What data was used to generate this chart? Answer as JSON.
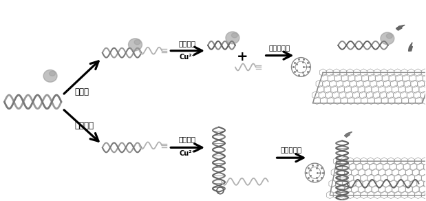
{
  "bg_color": "#ffffff",
  "label_target": "靶蛋白",
  "label_no_target": "无靶蛋白",
  "label_ascorbic": "抗坏血酸",
  "label_cu": "Cu²⁺",
  "label_go": "氧化石墨烯",
  "plus_sign": "+",
  "fig_width": 6.19,
  "fig_height": 2.92,
  "dpi": 100,
  "gray": "#787878",
  "dgray": "#404040",
  "lgray": "#b0b0b0",
  "mgray": "#606060",
  "protein_color": "#909090"
}
